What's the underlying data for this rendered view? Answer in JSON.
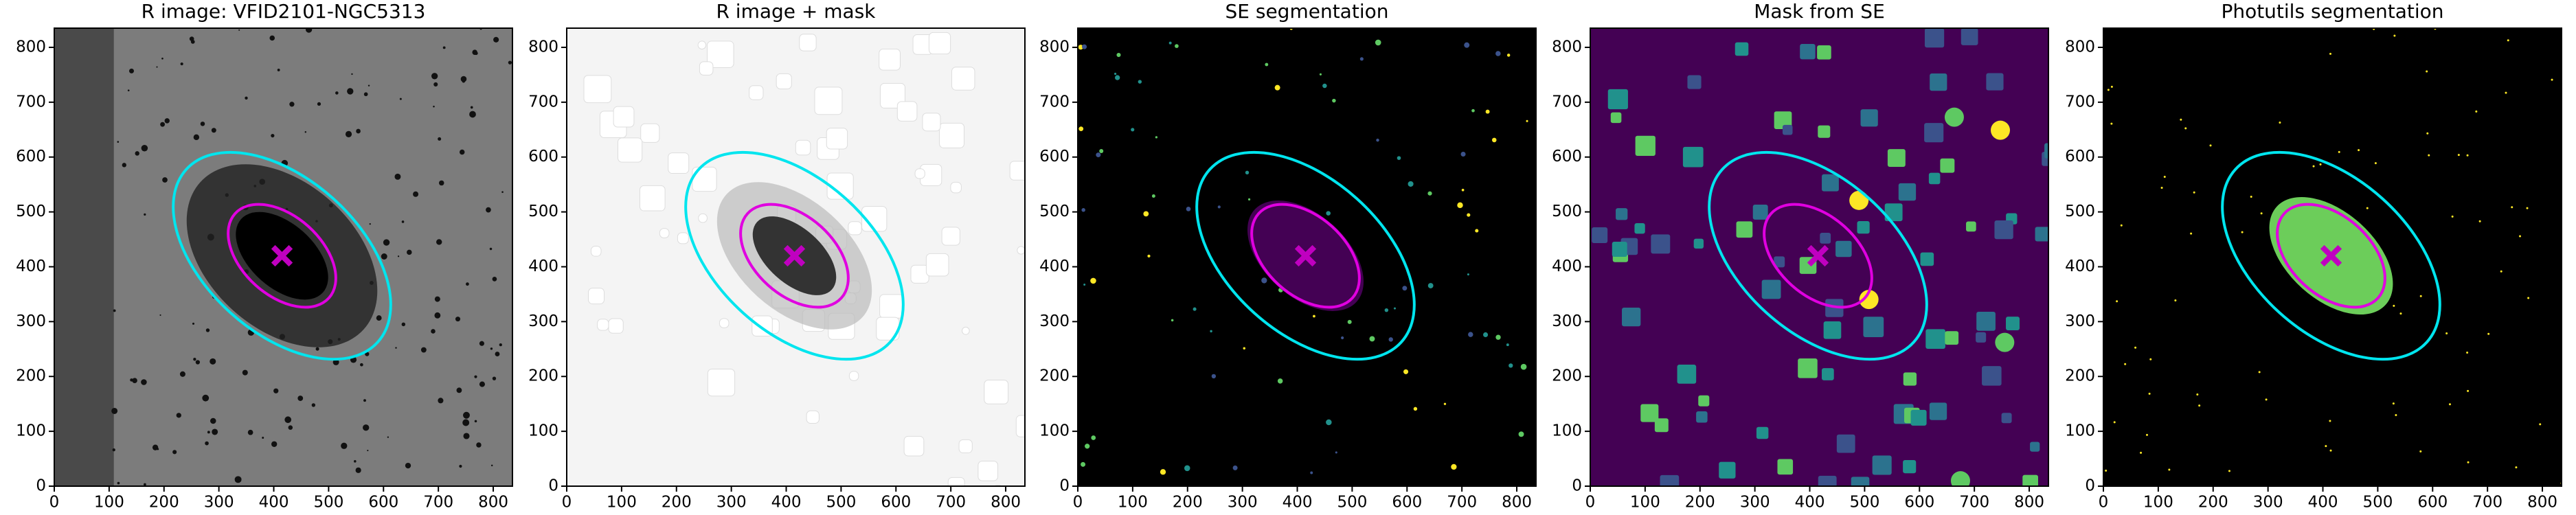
{
  "chart_data": [
    {
      "type": "image",
      "title": "R image: VFID2101-NGC5313",
      "background": "#7c7c7c",
      "xlim": [
        0,
        835
      ],
      "ylim": [
        0,
        835
      ],
      "xticks": [
        0,
        100,
        200,
        300,
        400,
        500,
        600,
        700,
        800
      ],
      "yticks": [
        0,
        100,
        200,
        300,
        400,
        500,
        600,
        700,
        800
      ],
      "center": [
        415,
        420
      ],
      "center_color": "#c000c0",
      "ellipses": [
        {
          "a": 235,
          "b": 140,
          "angle": -42,
          "color": "#00e5ee"
        },
        {
          "a": 115,
          "b": 72,
          "angle": -42,
          "color": "#e000e0"
        }
      ]
    },
    {
      "type": "image",
      "title": "R image + mask",
      "background": "#f4f4f4",
      "xlim": [
        0,
        835
      ],
      "ylim": [
        0,
        835
      ],
      "xticks": [
        0,
        100,
        200,
        300,
        400,
        500,
        600,
        700,
        800
      ],
      "yticks": [
        0,
        100,
        200,
        300,
        400,
        500,
        600,
        700,
        800
      ],
      "center": [
        415,
        420
      ],
      "center_color": "#c000c0",
      "ellipses": [
        {
          "a": 235,
          "b": 140,
          "angle": -42,
          "color": "#00e5ee"
        },
        {
          "a": 115,
          "b": 72,
          "angle": -42,
          "color": "#e000e0"
        }
      ]
    },
    {
      "type": "image",
      "title": "SE segmentation",
      "background": "#000000",
      "xlim": [
        0,
        835
      ],
      "ylim": [
        0,
        835
      ],
      "xticks": [
        0,
        100,
        200,
        300,
        400,
        500,
        600,
        700,
        800
      ],
      "yticks": [
        0,
        100,
        200,
        300,
        400,
        500,
        600,
        700,
        800
      ],
      "center": [
        415,
        420
      ],
      "center_color": "#c000c0",
      "ellipses": [
        {
          "a": 235,
          "b": 140,
          "angle": -42,
          "color": "#00e5ee"
        },
        {
          "a": 115,
          "b": 72,
          "angle": -42,
          "color": "#e000e0"
        }
      ]
    },
    {
      "type": "image",
      "title": "Mask from SE",
      "background": "#440154",
      "xlim": [
        0,
        835
      ],
      "ylim": [
        0,
        835
      ],
      "xticks": [
        0,
        100,
        200,
        300,
        400,
        500,
        600,
        700,
        800
      ],
      "yticks": [
        0,
        100,
        200,
        300,
        400,
        500,
        600,
        700,
        800
      ],
      "center": [
        415,
        420
      ],
      "center_color": "#c000c0",
      "ellipses": [
        {
          "a": 235,
          "b": 140,
          "angle": -42,
          "color": "#00e5ee"
        },
        {
          "a": 115,
          "b": 72,
          "angle": -42,
          "color": "#e000e0"
        }
      ]
    },
    {
      "type": "image",
      "title": "Photutils segmentation",
      "background": "#000000",
      "xlim": [
        0,
        835
      ],
      "ylim": [
        0,
        835
      ],
      "xticks": [
        0,
        100,
        200,
        300,
        400,
        500,
        600,
        700,
        800
      ],
      "yticks": [
        0,
        100,
        200,
        300,
        400,
        500,
        600,
        700,
        800
      ],
      "center": [
        415,
        420
      ],
      "center_color": "#c000c0",
      "ellipses": [
        {
          "a": 235,
          "b": 140,
          "angle": -42,
          "color": "#00e5ee"
        },
        {
          "a": 115,
          "b": 72,
          "angle": -42,
          "color": "#e000e0"
        }
      ]
    }
  ]
}
